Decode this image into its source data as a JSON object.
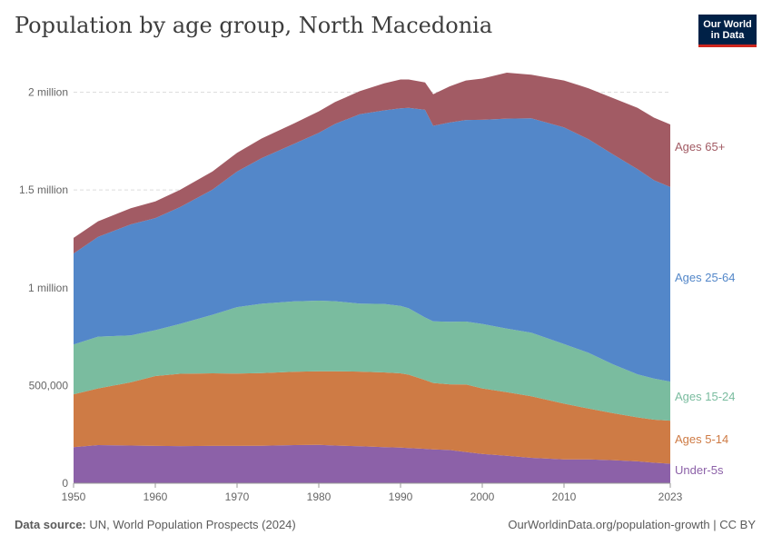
{
  "title": "Population by age group, North Macedonia",
  "logo": {
    "line1": "Our World",
    "line2": "in Data"
  },
  "footer": {
    "source_label": "Data source:",
    "source_text": "UN, World Population Prospects (2024)",
    "url": "OurWorldinData.org/population-growth | CC BY"
  },
  "chart_data": {
    "type": "area",
    "stacked": true,
    "title": "Population by age group, North Macedonia",
    "xlabel": "",
    "ylabel": "",
    "x": [
      1950,
      1953,
      1957,
      1960,
      1963,
      1967,
      1970,
      1973,
      1977,
      1980,
      1982,
      1985,
      1988,
      1990,
      1991,
      1993,
      1994,
      1996,
      1998,
      2000,
      2003,
      2006,
      2010,
      2013,
      2016,
      2019,
      2021,
      2023
    ],
    "xlim": [
      1950,
      2023
    ],
    "ylim": [
      0,
      2100000
    ],
    "x_ticks": [
      "1950",
      "1960",
      "1970",
      "1980",
      "1990",
      "2000",
      "2010",
      "2023"
    ],
    "x_tick_values": [
      1950,
      1960,
      1970,
      1980,
      1990,
      2000,
      2010,
      2023
    ],
    "y_ticks": [
      "0",
      "500,000",
      "1 million",
      "1.5 million",
      "2 million"
    ],
    "y_tick_values": [
      0,
      500000,
      1000000,
      1500000,
      2000000
    ],
    "grid": true,
    "legend": "right-end labels",
    "series": [
      {
        "name": "Under-5s",
        "color": "#8c61a8",
        "values": [
          185000,
          195000,
          193000,
          191000,
          190000,
          191000,
          191000,
          192000,
          195000,
          196000,
          193000,
          189000,
          185000,
          182000,
          180000,
          176000,
          173000,
          170000,
          160000,
          150000,
          141000,
          130000,
          122000,
          122000,
          118000,
          112000,
          105000,
          100000
        ]
      },
      {
        "name": "Ages 5-14",
        "color": "#ce7b45",
        "values": [
          270000,
          290000,
          323000,
          357000,
          370000,
          371000,
          370000,
          371000,
          375000,
          377000,
          380000,
          382000,
          382000,
          380000,
          375000,
          352000,
          340000,
          336000,
          345000,
          335000,
          325000,
          315000,
          285000,
          260000,
          240000,
          225000,
          220000,
          220000
        ]
      },
      {
        "name": "Ages 15-24",
        "color": "#7abc9f",
        "values": [
          255000,
          265000,
          240000,
          235000,
          255000,
          300000,
          340000,
          355000,
          360000,
          361000,
          358000,
          348000,
          350000,
          345000,
          340000,
          320000,
          315000,
          320000,
          322000,
          330000,
          325000,
          325000,
          305000,
          285000,
          250000,
          220000,
          210000,
          200000
        ]
      },
      {
        "name": "Ages 25-64",
        "color": "#5387c9",
        "values": [
          465000,
          510000,
          568000,
          573000,
          597000,
          640000,
          693000,
          745000,
          806000,
          858000,
          907000,
          968000,
          990000,
          1011000,
          1025000,
          1062000,
          1000000,
          1019000,
          1031000,
          1044000,
          1074000,
          1097000,
          1108000,
          1093000,
          1074000,
          1049000,
          1015000,
          995000
        ]
      },
      {
        "name": "Ages 65+",
        "color": "#a25b64",
        "values": [
          80000,
          80000,
          83000,
          85000,
          88000,
          93000,
          96000,
          100000,
          105000,
          110000,
          112000,
          118000,
          138000,
          147000,
          145000,
          140000,
          162000,
          185000,
          202000,
          211000,
          235000,
          223000,
          240000,
          260000,
          288000,
          314000,
          320000,
          320000
        ]
      }
    ]
  }
}
